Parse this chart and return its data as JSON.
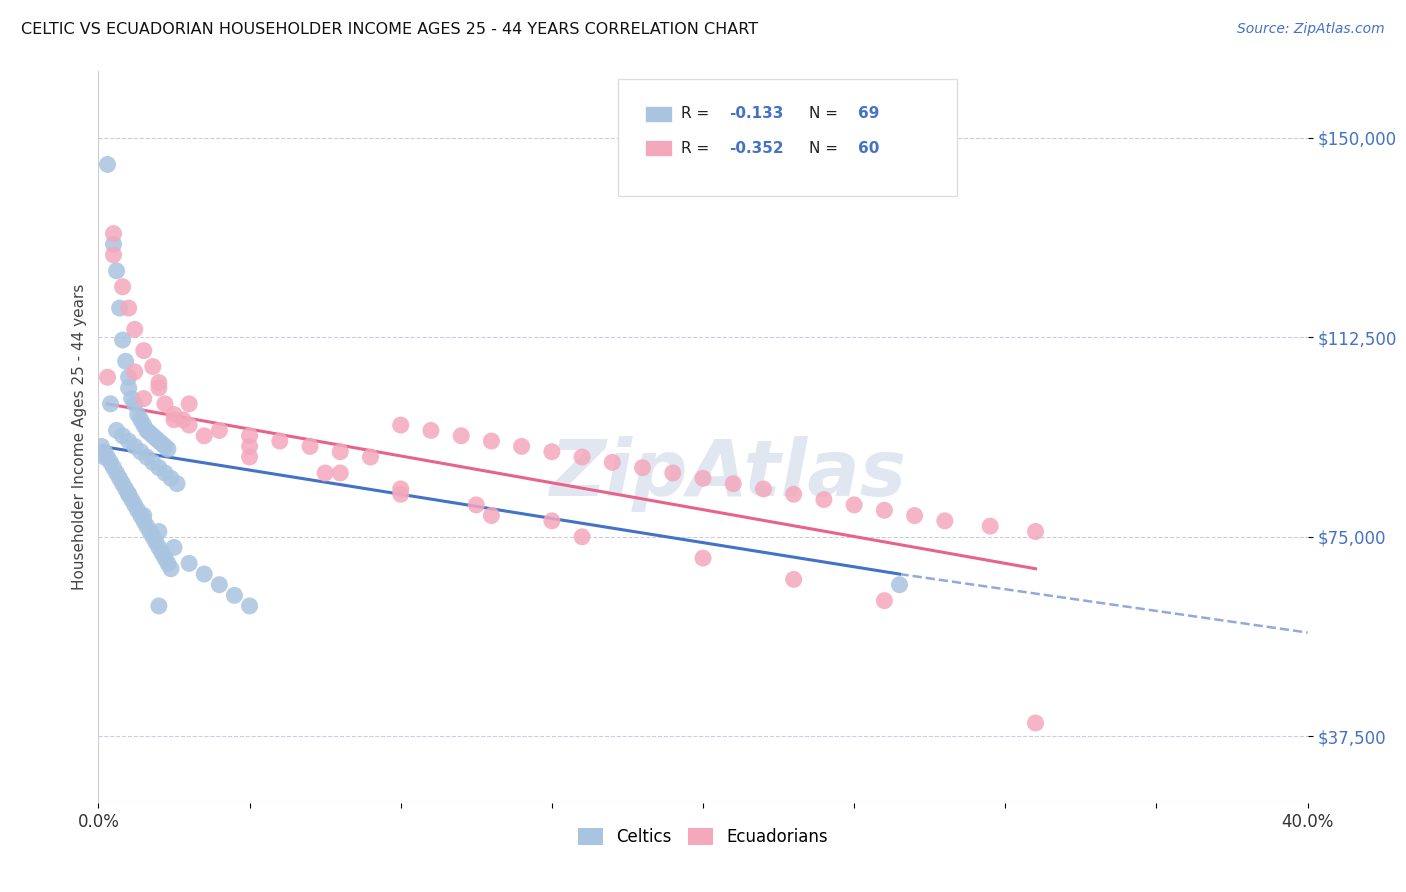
{
  "title": "CELTIC VS ECUADORIAN HOUSEHOLDER INCOME AGES 25 - 44 YEARS CORRELATION CHART",
  "source": "Source: ZipAtlas.com",
  "ylabel": "Householder Income Ages 25 - 44 years",
  "xlim": [
    0.0,
    0.4
  ],
  "ylim": [
    25000,
    162500
  ],
  "yticks": [
    37500,
    75000,
    112500,
    150000
  ],
  "ytick_labels": [
    "$37,500",
    "$75,000",
    "$112,500",
    "$150,000"
  ],
  "celtics_color": "#a8c4e0",
  "ecuadorians_color": "#f4a8bc",
  "trendline_celtics_color": "#4472c4",
  "trendline_ecuadorians_color": "#e8638a",
  "watermark_color": "#cdd8e8",
  "background_color": "#ffffff",
  "grid_color": "#ccccdd",
  "tick_label_color": "#4472c4",
  "legend_box_color": "#eeeeee",
  "celtics_x": [
    0.002,
    0.004,
    0.005,
    0.003,
    0.006,
    0.007,
    0.008,
    0.009,
    0.01,
    0.01,
    0.011,
    0.012,
    0.013,
    0.014,
    0.015,
    0.016,
    0.017,
    0.018,
    0.019,
    0.02,
    0.021,
    0.022,
    0.023,
    0.006,
    0.008,
    0.01,
    0.012,
    0.014,
    0.016,
    0.018,
    0.02,
    0.022,
    0.024,
    0.026,
    0.001,
    0.002,
    0.003,
    0.004,
    0.005,
    0.006,
    0.007,
    0.008,
    0.009,
    0.01,
    0.011,
    0.012,
    0.013,
    0.014,
    0.015,
    0.016,
    0.017,
    0.018,
    0.019,
    0.02,
    0.021,
    0.022,
    0.023,
    0.024,
    0.01,
    0.015,
    0.02,
    0.025,
    0.03,
    0.035,
    0.04,
    0.045,
    0.05,
    0.265,
    0.02
  ],
  "celtics_y": [
    90000,
    100000,
    130000,
    145000,
    125000,
    118000,
    112000,
    108000,
    105000,
    103000,
    101000,
    100000,
    98000,
    97000,
    96000,
    95000,
    94500,
    94000,
    93500,
    93000,
    92500,
    92000,
    91500,
    95000,
    94000,
    93000,
    92000,
    91000,
    90000,
    89000,
    88000,
    87000,
    86000,
    85000,
    92000,
    91000,
    90000,
    89000,
    88000,
    87000,
    86000,
    85000,
    84000,
    83000,
    82000,
    81000,
    80000,
    79000,
    78000,
    77000,
    76000,
    75000,
    74000,
    73000,
    72000,
    71000,
    70000,
    69000,
    83000,
    79000,
    76000,
    73000,
    70000,
    68000,
    66000,
    64000,
    62000,
    66000,
    62000
  ],
  "ecuadorians_x": [
    0.003,
    0.005,
    0.008,
    0.01,
    0.012,
    0.015,
    0.018,
    0.02,
    0.022,
    0.025,
    0.028,
    0.03,
    0.04,
    0.05,
    0.06,
    0.07,
    0.08,
    0.09,
    0.1,
    0.11,
    0.12,
    0.13,
    0.14,
    0.15,
    0.16,
    0.17,
    0.18,
    0.19,
    0.2,
    0.21,
    0.22,
    0.23,
    0.24,
    0.25,
    0.26,
    0.27,
    0.28,
    0.295,
    0.31,
    0.005,
    0.015,
    0.025,
    0.035,
    0.05,
    0.075,
    0.1,
    0.125,
    0.15,
    0.012,
    0.02,
    0.03,
    0.05,
    0.08,
    0.1,
    0.13,
    0.16,
    0.2,
    0.23,
    0.26,
    0.31
  ],
  "ecuadorians_y": [
    105000,
    128000,
    122000,
    118000,
    114000,
    110000,
    107000,
    104000,
    100000,
    98000,
    97000,
    96000,
    95000,
    94000,
    93000,
    92000,
    91000,
    90000,
    96000,
    95000,
    94000,
    93000,
    92000,
    91000,
    90000,
    89000,
    88000,
    87000,
    86000,
    85000,
    84000,
    83000,
    82000,
    81000,
    80000,
    79000,
    78000,
    77000,
    76000,
    132000,
    101000,
    97000,
    94000,
    90000,
    87000,
    84000,
    81000,
    78000,
    106000,
    103000,
    100000,
    92000,
    87000,
    83000,
    79000,
    75000,
    71000,
    67000,
    63000,
    40000
  ],
  "trendline_celtics_x0": 0.001,
  "trendline_celtics_x1": 0.265,
  "trendline_celtics_y0": 92000,
  "trendline_celtics_y1": 68000,
  "trendline_celtics_dash_x0": 0.265,
  "trendline_celtics_dash_x1": 0.4,
  "trendline_celtics_dash_y0": 68000,
  "trendline_celtics_dash_y1": 57000,
  "trendline_ecuadorians_x0": 0.003,
  "trendline_ecuadorians_x1": 0.31,
  "trendline_ecuadorians_y0": 100000,
  "trendline_ecuadorians_y1": 69000
}
